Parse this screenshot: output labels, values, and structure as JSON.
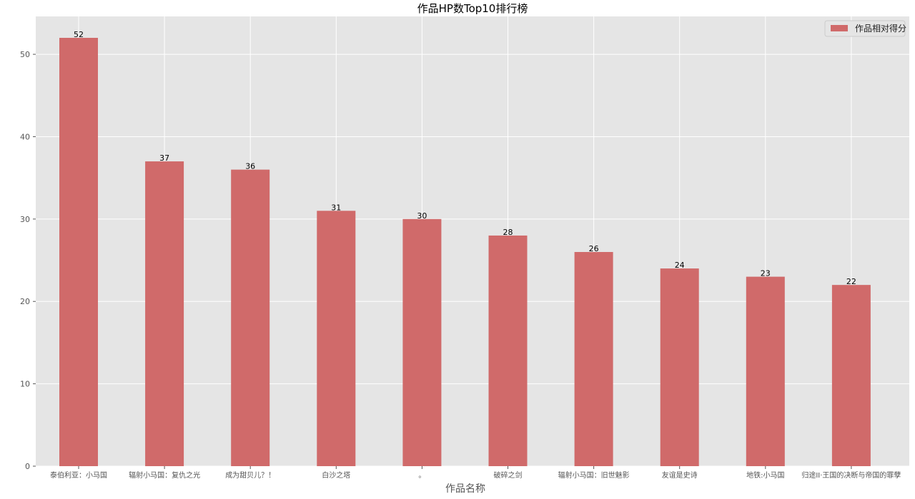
{
  "chart_data": {
    "type": "bar",
    "title": "作品HP数Top10排行榜",
    "xlabel": "作品名称",
    "ylabel": "",
    "categories": [
      "泰伯利亚：小马国",
      "辐射小马国：复仇之光",
      "成为甜贝儿？！",
      "白沙之塔",
      "。",
      "破碎之剑",
      "辐射小马国：旧世魅影",
      "友谊是史诗",
      "地铁:小马国",
      "归途II·王国的决断与帝国的罪孽"
    ],
    "series": [
      {
        "name": "作品相对得分",
        "values": [
          52,
          37,
          36,
          31,
          30,
          28,
          26,
          24,
          23,
          22
        ],
        "color": "#d06a6a"
      }
    ],
    "ylim": [
      0,
      54.6
    ],
    "yticks": [
      0,
      10,
      20,
      30,
      40,
      50
    ],
    "grid": true,
    "legend": "top-right",
    "background": "#e5e5e5",
    "data_labels": true
  }
}
